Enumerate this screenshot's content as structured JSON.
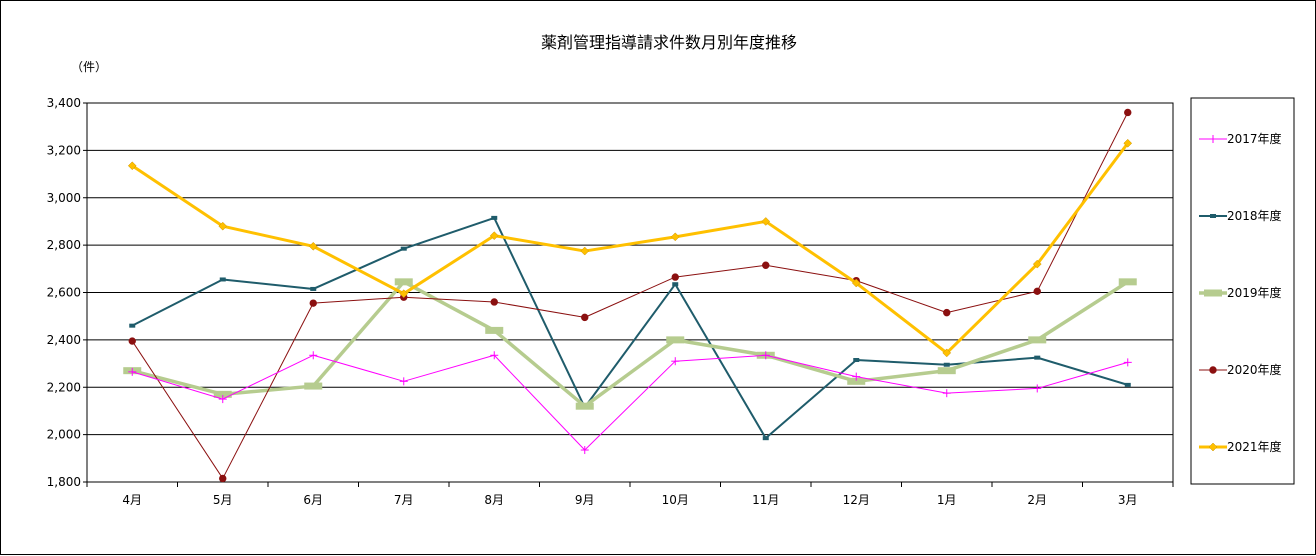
{
  "chart_data": {
    "type": "line",
    "title": "薬剤管理指導請求件数月別年度推移",
    "y_unit_label": "（件）",
    "categories": [
      "4月",
      "5月",
      "6月",
      "7月",
      "8月",
      "9月",
      "10月",
      "11月",
      "12月",
      "1月",
      "2月",
      "3月"
    ],
    "ylim": [
      1800,
      3400
    ],
    "yticks": [
      1800,
      2000,
      2200,
      2400,
      2600,
      2800,
      3000,
      3200,
      3400
    ],
    "ytick_labels": [
      "1,800",
      "2,000",
      "2,200",
      "2,400",
      "2,600",
      "2,800",
      "3,000",
      "3,200",
      "3,400"
    ],
    "grid": true,
    "legend_position": "right",
    "series": [
      {
        "name": "2017年度",
        "color": "#ff00ff",
        "marker": "plus",
        "values": [
          2265,
          2150,
          2335,
          2225,
          2335,
          1935,
          2310,
          2335,
          2245,
          2175,
          2195,
          2305
        ]
      },
      {
        "name": "2018年度",
        "color": "#1f5c6b",
        "marker": "dash",
        "values": [
          2460,
          2655,
          2615,
          2785,
          2915,
          2115,
          2635,
          1985,
          2315,
          2295,
          2325,
          2210
        ]
      },
      {
        "name": "2019年度",
        "color": "#b6cc8f",
        "marker": "dash",
        "values": [
          2270,
          2170,
          2205,
          2645,
          2440,
          2120,
          2400,
          2335,
          2225,
          2270,
          2400,
          2645
        ]
      },
      {
        "name": "2020年度",
        "color": "#8b1010",
        "marker": "circle",
        "values": [
          2395,
          1815,
          2555,
          2580,
          2560,
          2495,
          2665,
          2715,
          2650,
          2515,
          2605,
          3360
        ]
      },
      {
        "name": "2021年度",
        "color": "#ffc000",
        "marker": "diamond",
        "values": [
          3135,
          2880,
          2795,
          2595,
          2840,
          2775,
          2835,
          2900,
          2640,
          2345,
          2720,
          3230
        ]
      }
    ]
  }
}
